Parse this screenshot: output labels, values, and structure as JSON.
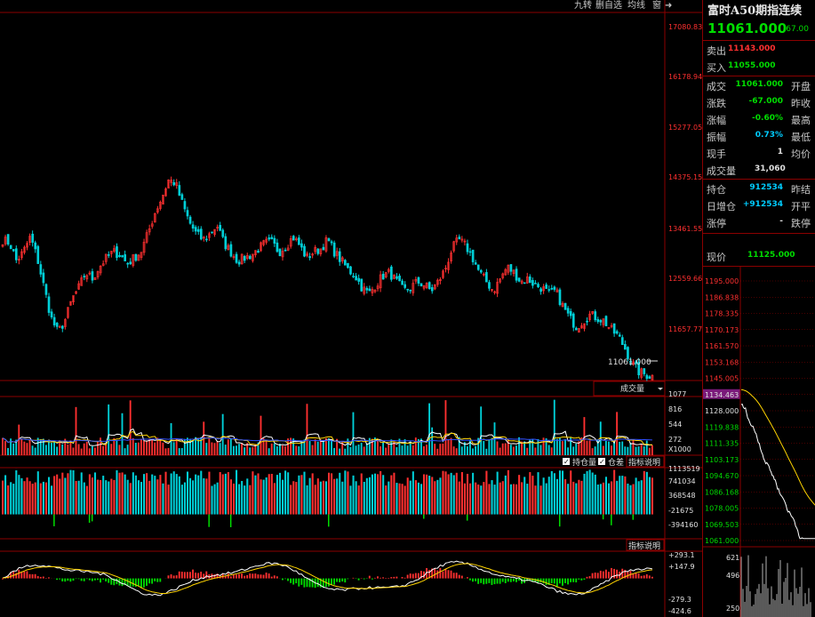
{
  "toolbar": {
    "items": [
      "九转",
      "删自选",
      "均线",
      "窗"
    ],
    "close_icon": "arrow-right-bar-icon"
  },
  "instrument": {
    "title": "富时A50期指连续",
    "price": "11061.000",
    "change": "-67.00"
  },
  "quote": {
    "sell_label": "卖出",
    "sell_value": "11143.000",
    "buy_label": "买入",
    "buy_value": "11055.000",
    "deal_label": "成交",
    "deal_value": "11061.000",
    "open_label": "开盘",
    "change_label": "涨跌",
    "change_value": "-67.000",
    "prev_close_label": "昨收",
    "pct_label": "涨幅",
    "pct_value": "-0.60%",
    "high_label": "最高",
    "amp_label": "振幅",
    "amp_value": "0.73%",
    "low_label": "最低",
    "hand_label": "现手",
    "hand_value": "1",
    "avg_label": "均价",
    "volume_label": "成交量",
    "volume_value": "31,060",
    "oi_label": "持仓",
    "oi_value": "912534",
    "prev_settle_label": "昨结",
    "daily_oi_label": "日增仓",
    "daily_oi_value": "+912534",
    "open_flat_label": "开平",
    "limit_up_label": "涨停",
    "limit_up_value": "-",
    "limit_down_label": "跌停",
    "spot_label": "现价",
    "spot_value": "11125.000"
  },
  "colors": {
    "up": "#ff3030",
    "down": "#00d0d8",
    "grid": "#8b0000",
    "axis_text": "#ff3030",
    "ma_white": "#ffffff",
    "ma_yellow": "#ffd400",
    "ma_purple": "#cc66ff",
    "ma_blue": "#3050ff",
    "green": "#00dd00"
  },
  "chart_data": [
    {
      "type": "candlestick",
      "panel": "price",
      "y_ticks": [
        "17080.83",
        "16178.94",
        "15277.05",
        "14375.15",
        "13461.55",
        "12559.66",
        "11657.77"
      ],
      "ylim": [
        11150,
        17300
      ],
      "last_price_label": "11061.000",
      "close_path": [
        13500,
        13450,
        13150,
        13300,
        13550,
        13200,
        12700,
        12200,
        11950,
        12150,
        12500,
        12700,
        12950,
        12850,
        13050,
        13200,
        13300,
        13250,
        13100,
        13200,
        13300,
        13600,
        13950,
        14200,
        14500,
        14450,
        14100,
        13800,
        13600,
        13500,
        13600,
        13750,
        13450,
        13300,
        13150,
        13200,
        13250,
        13350,
        13450,
        13450,
        13300,
        13400,
        13550,
        13400,
        13200,
        13300,
        13350,
        13500,
        13300,
        13150,
        13000,
        12900,
        12700,
        12600,
        12750,
        12900,
        12950,
        12800,
        12650,
        12700,
        12800,
        12750,
        12650,
        12800,
        13000,
        13350,
        13500,
        13400,
        13200,
        12950,
        12800,
        12650,
        12850,
        13050,
        12950,
        12800,
        12850,
        12750,
        12700,
        12600,
        12650,
        12400,
        12200,
        12050,
        12150,
        12250,
        12200,
        12150,
        12000,
        11900,
        11700,
        11450,
        11300,
        11250,
        11220
      ]
    },
    {
      "type": "bar",
      "panel": "volume",
      "label": "成交量",
      "y_ticks": [
        "1077",
        "816",
        "544",
        "272",
        "X1000"
      ],
      "ylim": [
        0,
        1100
      ]
    },
    {
      "type": "bar",
      "panel": "open_interest",
      "legend": [
        "持仓量",
        "仓差"
      ],
      "legend_checked": [
        true,
        true
      ],
      "button_label": "指标说明",
      "y_ticks": [
        "1113519",
        "741034",
        "368548",
        "-21675",
        "-394160"
      ],
      "ylim": [
        -600000,
        1150000
      ]
    },
    {
      "type": "bar",
      "panel": "macd",
      "button_label": "指标说明",
      "y_ticks": [
        "+293.1",
        "+147.9",
        "-279.3",
        "-424.6"
      ],
      "ylim": [
        -440,
        310
      ]
    },
    {
      "type": "line",
      "panel": "intraday",
      "y_ticks": [
        "1195.000",
        "1186.838",
        "1178.335",
        "1170.173",
        "1161.570",
        "1153.168",
        "1145.005",
        "1134.463",
        "1128.000",
        "1119.838",
        "1111.335",
        "1103.173",
        "1094.670",
        "1086.168",
        "1078.005",
        "1069.503",
        "1061.000"
      ],
      "highlight_tick": "1134.463",
      "volume_ticks": [
        "621",
        "496",
        "250"
      ],
      "ylim": [
        1061,
        1195
      ]
    }
  ]
}
